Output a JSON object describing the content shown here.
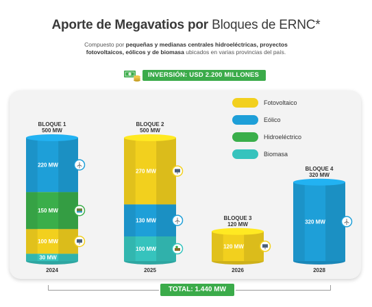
{
  "header": {
    "title_bold": "Aporte de Megavatios por",
    "title_light": "Bloques de ERNC*",
    "subtitle_p1": "Compuesto por",
    "subtitle_b1": "pequeñas y medianas centrales hidroeléctricas, proyectos",
    "subtitle_b2": "fotovoltaicos, eólicos y de biomasa",
    "subtitle_p2": "ubicados en varias provincias del país.",
    "investment": "INVERSIÓN: USD 2.200 MILLONES"
  },
  "total_label": "TOTAL: 1.440 MW",
  "colors": {
    "Fotovoltaico": "#f2d01e",
    "Eólico": "#1e9fd8",
    "Hidroeléctrico": "#3aae4a",
    "Biomasa": "#36c3bd",
    "green_badge": "#3bab4a"
  },
  "chart_data": {
    "type": "bar",
    "stacked": true,
    "categories": [
      "2024",
      "2025",
      "2026",
      "2028"
    ],
    "blocks": [
      {
        "name": "BLOQUE 1",
        "total": "500 MW"
      },
      {
        "name": "BLOQUE 2",
        "total": "500 MW"
      },
      {
        "name": "BLOQUE 3",
        "total": "120 MW"
      },
      {
        "name": "BLOQUE 4",
        "total": "320 MW"
      }
    ],
    "series": [
      {
        "name": "Biomasa",
        "values": [
          30,
          100,
          0,
          0
        ]
      },
      {
        "name": "Fotovoltaico",
        "values": [
          100,
          270,
          120,
          0
        ]
      },
      {
        "name": "Hidroeléctrico",
        "values": [
          150,
          0,
          0,
          0
        ]
      },
      {
        "name": "Eólico",
        "values": [
          220,
          130,
          0,
          320
        ]
      }
    ],
    "stack_order": [
      [
        "Biomasa",
        "Fotovoltaico",
        "Hidroeléctrico",
        "Eólico"
      ],
      [
        "Biomasa",
        "Eólico",
        "Fotovoltaico"
      ],
      [
        "Fotovoltaico"
      ],
      [
        "Eólico"
      ]
    ],
    "segment_labels": [
      [
        "30 MW",
        "100 MW",
        "150 MW",
        "220 MW"
      ],
      [
        "100 MW",
        "130 MW",
        "270 MW"
      ],
      [
        "120 MW"
      ],
      [
        "320 MW"
      ]
    ],
    "legend": [
      "Fotovoltaico",
      "Eólico",
      "Hidroeléctrico",
      "Biomasa"
    ],
    "legend_placement": "top-right",
    "ylim": [
      0,
      500
    ],
    "grid": false
  }
}
